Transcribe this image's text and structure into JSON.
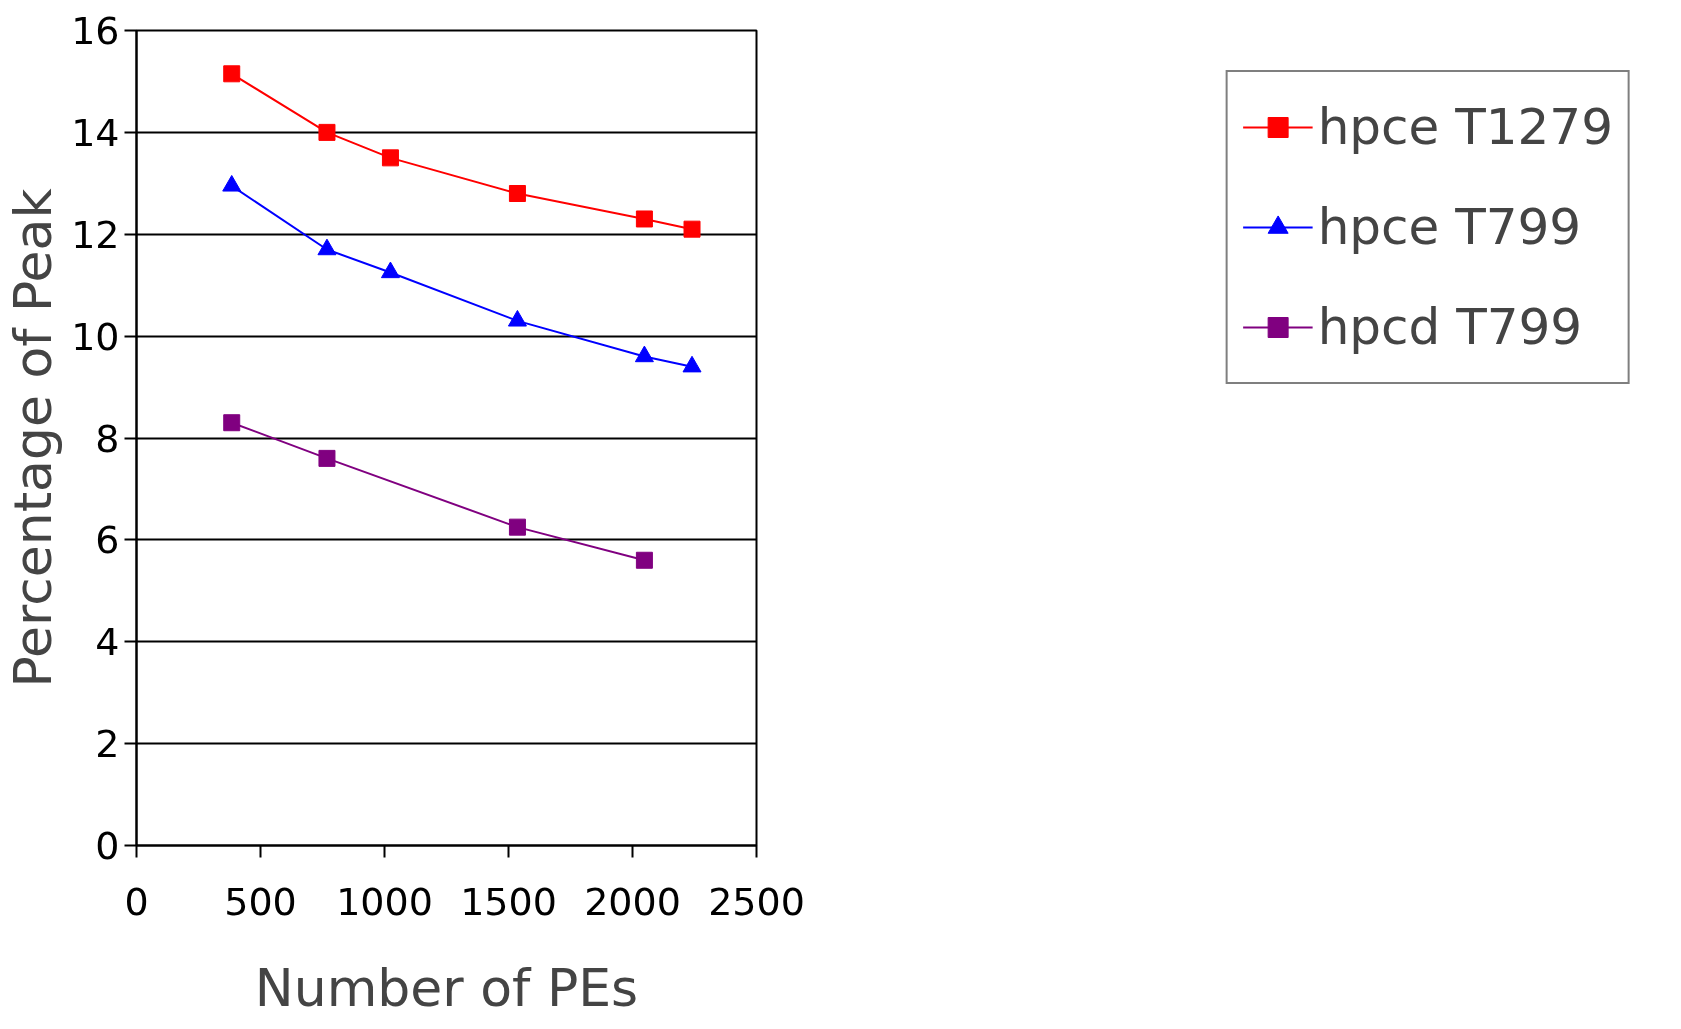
{
  "chart_data": {
    "type": "line",
    "xlabel": "Number of PEs",
    "ylabel": "Percentage of Peak",
    "xlim": [
      0,
      2500
    ],
    "xticks": [
      0,
      500,
      1000,
      1500,
      2000,
      2500
    ],
    "ylim": [
      0,
      16
    ],
    "yticks": [
      0,
      2,
      4,
      6,
      8,
      10,
      12,
      14,
      16
    ],
    "grid": "y",
    "legend": "right",
    "line_style": "solid",
    "series": [
      {
        "name": "hpce T1279",
        "color": "#ff0000",
        "marker": "square",
        "x": [
          384,
          768,
          1024,
          1536,
          2048,
          2240
        ],
        "values": [
          15.15,
          14.0,
          13.5,
          12.8,
          12.3,
          12.1
        ]
      },
      {
        "name": "hpce T799",
        "color": "#0000ff",
        "marker": "triangle",
        "x": [
          384,
          768,
          1024,
          1536,
          2048,
          2240
        ],
        "values": [
          12.95,
          11.7,
          11.25,
          10.3,
          9.6,
          9.4
        ]
      },
      {
        "name": "hpcd T799",
        "color": "#800080",
        "marker": "square",
        "x": [
          384,
          768,
          1536,
          2048
        ],
        "values": [
          8.3,
          7.6,
          6.25,
          5.6
        ]
      }
    ]
  }
}
